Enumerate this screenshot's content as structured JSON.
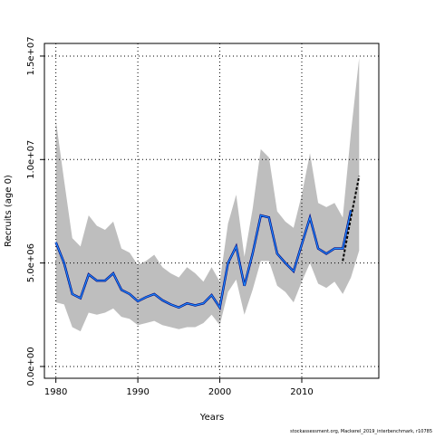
{
  "chart_data": {
    "type": "band-line",
    "x_label": "Years",
    "y_label": "Recruits (age 0)",
    "footnote": "stockassessment.org, Mackerel_2019_interbenchmark, r10785",
    "x": [
      1980,
      1981,
      1982,
      1983,
      1984,
      1985,
      1986,
      1987,
      1988,
      1989,
      1990,
      1991,
      1992,
      1993,
      1994,
      1995,
      1996,
      1997,
      1998,
      1999,
      2000,
      2001,
      2002,
      2003,
      2004,
      2005,
      2006,
      2007,
      2008,
      2009,
      2010,
      2011,
      2012,
      2013,
      2014,
      2015,
      2016,
      2017
    ],
    "xlim": [
      1978.6,
      2019.4
    ],
    "xticks": [
      1980,
      1990,
      2000,
      2010
    ],
    "ylim": [
      -570000,
      15610000
    ],
    "yticks": [
      {
        "value": 0,
        "label": "0.0e+00"
      },
      {
        "value": 5000000,
        "label": "5.0e+06"
      },
      {
        "value": 10000000,
        "label": "1.0e+07"
      },
      {
        "value": 15000000,
        "label": "1.5e+07"
      }
    ],
    "grid": true,
    "band": {
      "color": "#bebebe",
      "lower": [
        3100000,
        3000000,
        1900000,
        1700000,
        2600000,
        2500000,
        2600000,
        2800000,
        2400000,
        2300000,
        2000000,
        2100000,
        2200000,
        2000000,
        1900000,
        1800000,
        1900000,
        1900000,
        2100000,
        2500000,
        2000000,
        3600000,
        4200000,
        2500000,
        3700000,
        5100000,
        5100000,
        3900000,
        3600000,
        3100000,
        4100000,
        5000000,
        4000000,
        3800000,
        4100000,
        3500000,
        4300000,
        5600000
      ],
      "upper": [
        11900000,
        9000000,
        6200000,
        5800000,
        7300000,
        6800000,
        6600000,
        7000000,
        5700000,
        5500000,
        4900000,
        5100000,
        5400000,
        4800000,
        4500000,
        4300000,
        4800000,
        4500000,
        4100000,
        4800000,
        4100000,
        6900000,
        8300000,
        5300000,
        7600000,
        10500000,
        10100000,
        7500000,
        7000000,
        6700000,
        8300000,
        10300000,
        7900000,
        7700000,
        7900000,
        7200000,
        11300000,
        14900000
      ]
    },
    "series": [
      {
        "color": "#1e90ff",
        "dash": false,
        "values": [
          6000000,
          5000000,
          3500000,
          3300000,
          4450000,
          4150000,
          4150000,
          4500000,
          3700000,
          3500000,
          3150000,
          3350000,
          3500000,
          3200000,
          3000000,
          2850000,
          3050000,
          2950000,
          3050000,
          3450000,
          2850000,
          5000000,
          5800000,
          3900000,
          5450000,
          7300000,
          7200000,
          5450000,
          5000000,
          4600000,
          5900000,
          7200000,
          5700000,
          5450000,
          5700000,
          5700000,
          7550000,
          null
        ]
      },
      {
        "color": "#000000",
        "dash": true,
        "values": [
          null,
          null,
          null,
          null,
          null,
          null,
          null,
          null,
          null,
          null,
          null,
          null,
          null,
          null,
          null,
          null,
          null,
          null,
          null,
          null,
          null,
          null,
          null,
          null,
          null,
          null,
          null,
          null,
          null,
          null,
          null,
          null,
          null,
          null,
          null,
          5100000,
          7200000,
          9200000
        ]
      }
    ]
  }
}
